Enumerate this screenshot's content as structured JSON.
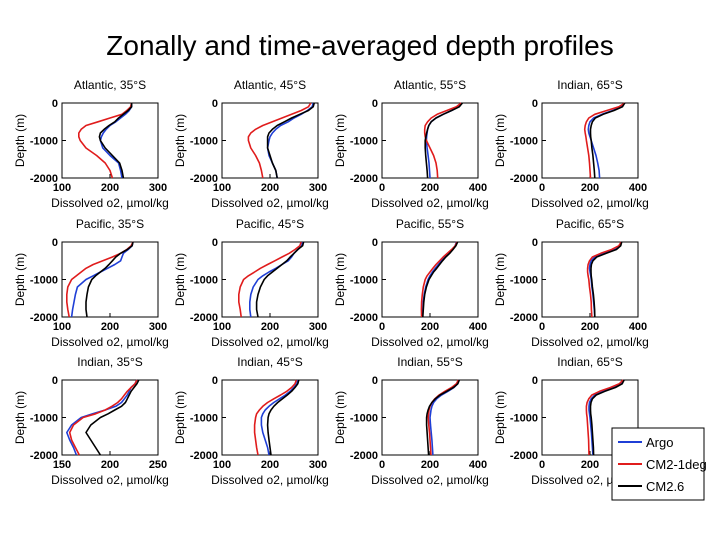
{
  "page": {
    "title": "Zonally and time-averaged depth profiles"
  },
  "colors": {
    "Argo": "#1f3fd6",
    "CM2-1deg": "#e01c1c",
    "CM2.6": "#000000"
  },
  "chart_data": {
    "type": "line",
    "legend": {
      "placement": "bottom-right",
      "entries": [
        "Argo",
        "CM2-1deg",
        "CM2.6"
      ]
    },
    "ylabel": "Depth (m)",
    "ylim": [
      -2000,
      0
    ],
    "yticks": [
      "0",
      "-1000",
      "-2000"
    ],
    "depth": [
      0,
      -100,
      -200,
      -300,
      -400,
      -500,
      -600,
      -700,
      -800,
      -900,
      -1000,
      -1200,
      -1400,
      -1600,
      -1800,
      -2000
    ],
    "panels": [
      {
        "title": "Atlantic, 35°S",
        "xlabel": "Dissolved o2, µmol/kg",
        "xlim": [
          100,
          300
        ],
        "xticks": [
          "100",
          "200",
          "300"
        ],
        "series": [
          {
            "name": "Argo",
            "values": [
              245,
              245,
              240,
              232,
              222,
              212,
              200,
              192,
              186,
              182,
              180,
              185,
              200,
              218,
              222,
              225
            ]
          },
          {
            "name": "CM2-1deg",
            "values": [
              245,
              243,
              235,
              225,
              200,
              175,
              150,
              140,
              135,
              135,
              138,
              150,
              172,
              190,
              200,
              205
            ]
          },
          {
            "name": "CM2.6",
            "values": [
              245,
              245,
              238,
              228,
              218,
              210,
              198,
              188,
              180,
              178,
              180,
              190,
              205,
              220,
              225,
              228
            ]
          }
        ]
      },
      {
        "title": "Atlantic, 45°S",
        "xlabel": "Dissolved o2, µmol/kg",
        "xlim": [
          100,
          300
        ],
        "xticks": [
          "100",
          "200",
          "300"
        ],
        "series": [
          {
            "name": "Argo",
            "values": [
              290,
              288,
              278,
              265,
              250,
              238,
              222,
              212,
              205,
              200,
              198,
              195,
              198,
              205,
              212,
              215
            ]
          },
          {
            "name": "CM2-1deg",
            "values": [
              285,
              280,
              265,
              245,
              225,
              205,
              185,
              170,
              160,
              155,
              155,
              160,
              170,
              178,
              182,
              185
            ]
          },
          {
            "name": "CM2.6",
            "values": [
              292,
              290,
              280,
              262,
              245,
              230,
              215,
              205,
              198,
              195,
              195,
              195,
              200,
              205,
              212,
              215
            ]
          }
        ]
      },
      {
        "title": "Atlantic, 55°S",
        "xlabel": "Dissolved o2, µmol/kg",
        "xlim": [
          0,
          400
        ],
        "xticks": [
          "0",
          "200",
          "400"
        ],
        "series": [
          {
            "name": "Argo",
            "values": [
              330,
              318,
              290,
              255,
              225,
              205,
              195,
              190,
              188,
              186,
              185,
              188,
              192,
              196,
              198,
              200
            ]
          },
          {
            "name": "CM2-1deg",
            "values": [
              330,
              310,
              270,
              230,
              205,
              190,
              180,
              178,
              178,
              180,
              185,
              200,
              215,
              225,
              230,
              232
            ]
          },
          {
            "name": "CM2.6",
            "values": [
              335,
              322,
              290,
              255,
              225,
              205,
              195,
              190,
              186,
              183,
              180,
              180,
              182,
              185,
              188,
              190
            ]
          }
        ]
      },
      {
        "title": "Indian, 65°S",
        "xlabel": "Dissolved o2, µmol/kg",
        "xlim": [
          0,
          400
        ],
        "xticks": [
          "0",
          "200",
          "400"
        ],
        "series": [
          {
            "name": "Argo",
            "values": [
              345,
              330,
              295,
              250,
              215,
              200,
              195,
              193,
              195,
              200,
              205,
              215,
              225,
              232,
              238,
              240
            ]
          },
          {
            "name": "CM2-1deg",
            "values": [
              345,
              320,
              270,
              220,
              195,
              185,
              180,
              178,
              180,
              183,
              185,
              190,
              195,
              198,
              200,
              202
            ]
          },
          {
            "name": "CM2.6",
            "values": [
              345,
              335,
              300,
              255,
              222,
              210,
              205,
              202,
              202,
              203,
              205,
              208,
              212,
              215,
              218,
              220
            ]
          }
        ]
      },
      {
        "title": "Pacific, 35°S",
        "xlabel": "Dissolved o2, µmol/kg",
        "xlim": [
          100,
          300
        ],
        "xticks": [
          "100",
          "200",
          "300"
        ],
        "series": [
          {
            "name": "Argo",
            "values": [
              248,
              246,
              238,
              228,
              225,
              222,
              210,
              195,
              180,
              165,
              150,
              132,
              128,
              125,
              122,
              120
            ]
          },
          {
            "name": "CM2-1deg",
            "values": [
              248,
              244,
              235,
              222,
              205,
              185,
              165,
              150,
              140,
              130,
              120,
              112,
              110,
              110,
              112,
              115
            ]
          },
          {
            "name": "CM2.6",
            "values": [
              248,
              246,
              236,
              222,
              212,
              205,
              198,
              190,
              180,
              170,
              162,
              155,
              152,
              150,
              150,
              152
            ]
          }
        ]
      },
      {
        "title": "Pacific, 45°S",
        "xlabel": "Dissolved o2, µmol/kg",
        "xlim": [
          100,
          300
        ],
        "xticks": [
          "100",
          "200",
          "300"
        ],
        "series": [
          {
            "name": "Argo",
            "values": [
              268,
              266,
              258,
              250,
              245,
              238,
              225,
              212,
              198,
              185,
              175,
              165,
              160,
              158,
              158,
              160
            ]
          },
          {
            "name": "CM2-1deg",
            "values": [
              265,
              262,
              252,
              240,
              225,
              210,
              195,
              180,
              168,
              155,
              145,
              138,
              135,
              135,
              138,
              140
            ]
          },
          {
            "name": "CM2.6",
            "values": [
              270,
              268,
              258,
              250,
              242,
              235,
              225,
              215,
              205,
              195,
              188,
              180,
              175,
              172,
              172,
              175
            ]
          }
        ]
      },
      {
        "title": "Pacific, 55°S",
        "xlabel": "Dissolved o2, µmol/kg",
        "xlim": [
          0,
          400
        ],
        "xticks": [
          "0",
          "200",
          "400"
        ],
        "series": [
          {
            "name": "Argo",
            "values": [
              310,
              305,
              295,
              280,
              262,
              248,
              235,
              222,
              210,
              200,
              192,
              182,
              176,
              172,
              170,
              168
            ]
          },
          {
            "name": "CM2-1deg",
            "values": [
              312,
              305,
              290,
              272,
              255,
              240,
              225,
              212,
              200,
              188,
              180,
              172,
              168,
              165,
              164,
              165
            ]
          },
          {
            "name": "CM2.6",
            "values": [
              315,
              308,
              296,
              282,
              266,
              252,
              240,
              228,
              215,
              205,
              196,
              185,
              178,
              174,
              172,
              170
            ]
          }
        ]
      },
      {
        "title": "Pacific, 65°S",
        "xlabel": "Dissolved o2, µmol/kg",
        "xlim": [
          0,
          400
        ],
        "xticks": [
          "0",
          "200",
          "400"
        ],
        "series": [
          {
            "name": "Argo",
            "values": [
              330,
              325,
              305,
              260,
              220,
              205,
              200,
              198,
              200,
              203,
              205,
              208,
              212,
              215,
              218,
              220
            ]
          },
          {
            "name": "CM2-1deg",
            "values": [
              330,
              320,
              290,
              245,
              210,
              198,
              192,
              190,
              190,
              192,
              195,
              198,
              202,
              205,
              206,
              208
            ]
          },
          {
            "name": "CM2.6",
            "values": [
              332,
              328,
              310,
              268,
              228,
              212,
              206,
              204,
              204,
              205,
              207,
              210,
              214,
              217,
              219,
              220
            ]
          }
        ]
      },
      {
        "title": "Indian, 35°S",
        "xlabel": "Dissolved o2, µmol/kg",
        "xlim": [
          150,
          250
        ],
        "xticks": [
          "150",
          "200",
          "250"
        ],
        "series": [
          {
            "name": "Argo",
            "values": [
              228,
              226,
              222,
              220,
              218,
              215,
              212,
              206,
              195,
              182,
              170,
              160,
              155,
              158,
              162,
              165
            ]
          },
          {
            "name": "CM2-1deg",
            "values": [
              228,
              226,
              222,
              218,
              215,
              212,
              208,
              202,
              195,
              185,
              172,
              162,
              158,
              160,
              164,
              168
            ]
          },
          {
            "name": "CM2.6",
            "values": [
              230,
              228,
              225,
              222,
              220,
              218,
              216,
              212,
              205,
              198,
              190,
              180,
              175,
              180,
              185,
              190
            ]
          }
        ]
      },
      {
        "title": "Indian, 45°S",
        "xlabel": "Dissolved o2, µmol/kg",
        "xlim": [
          100,
          300
        ],
        "xticks": [
          "100",
          "200",
          "300"
        ],
        "series": [
          {
            "name": "Argo",
            "values": [
              258,
              256,
              250,
              242,
              232,
              220,
              208,
              198,
              190,
              185,
              182,
              182,
              185,
              190,
              195,
              198
            ]
          },
          {
            "name": "CM2-1deg",
            "values": [
              255,
              252,
              245,
              235,
              222,
              208,
              195,
              185,
              178,
              172,
              170,
              168,
              168,
              170,
              172,
              175
            ]
          },
          {
            "name": "CM2.6",
            "values": [
              260,
              258,
              252,
              245,
              236,
              226,
              216,
              208,
              202,
              198,
              196,
              195,
              196,
              198,
              200,
              202
            ]
          }
        ]
      },
      {
        "title": "Indian, 55°S",
        "xlabel": "Dissolved o2, µmol/kg",
        "xlim": [
          0,
          400
        ],
        "xticks": [
          "0",
          "200",
          "400"
        ],
        "series": [
          {
            "name": "Argo",
            "values": [
              320,
              315,
              300,
              275,
              248,
              228,
              215,
              208,
              204,
              202,
              200,
              202,
              205,
              208,
              210,
              212
            ]
          },
          {
            "name": "CM2-1deg",
            "values": [
              318,
              310,
              290,
              262,
              238,
              220,
              208,
              200,
              196,
              194,
              193,
              195,
              198,
              200,
              202,
              204
            ]
          },
          {
            "name": "CM2.6",
            "values": [
              322,
              316,
              298,
              270,
              242,
              222,
              208,
              198,
              192,
              188,
              186,
              186,
              188,
              190,
              192,
              194
            ]
          }
        ]
      },
      {
        "title": "Indian, 65°S",
        "xlabel": "Dissolved o2, µmol/kg",
        "xlim": [
          0,
          400
        ],
        "xticks": [
          "0",
          "200",
          "400"
        ],
        "series": [
          {
            "name": "Argo",
            "values": [
              340,
              330,
              300,
              255,
              220,
              205,
              198,
              196,
              196,
              198,
              200,
              203,
              206,
              208,
              210,
              212
            ]
          },
          {
            "name": "CM2-1deg",
            "values": [
              338,
              322,
              285,
              240,
              208,
              195,
              188,
              185,
              185,
              186,
              188,
              190,
              192,
              194,
              195,
              196
            ]
          },
          {
            "name": "CM2.6",
            "values": [
              342,
              334,
              306,
              262,
              226,
              210,
              204,
              202,
              202,
              203,
              205,
              208,
              210,
              212,
              214,
              215
            ]
          }
        ]
      }
    ]
  }
}
